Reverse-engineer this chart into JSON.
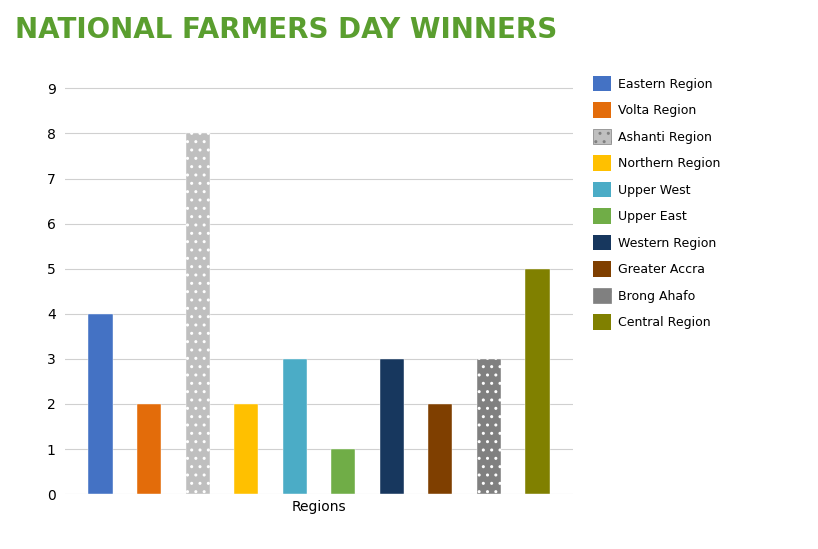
{
  "title": "NATIONAL FARMERS DAY WINNERS",
  "title_color": "#5a9e2f",
  "xlabel": "Regions",
  "ylabel": "",
  "ylim": [
    0,
    9.5
  ],
  "yticks": [
    0,
    1,
    2,
    3,
    4,
    5,
    6,
    7,
    8,
    9
  ],
  "categories": [
    "Eastern Region",
    "Volta Region",
    "Ashanti Region",
    "Northern Region",
    "Upper West",
    "Upper East",
    "Western Region",
    "Greater Accra",
    "Brong Ahafo",
    "Central Region"
  ],
  "values": [
    4,
    2,
    8,
    2,
    3,
    1,
    3,
    2,
    3,
    5
  ],
  "bar_colors": [
    "#4472c4",
    "#e36c0a",
    "#bfbfbf",
    "#ffc000",
    "#4bacc6",
    "#70ad47",
    "#17375e",
    "#7f3f00",
    "#808080",
    "#808000"
  ],
  "bar_hatches": [
    null,
    null,
    "..",
    null,
    null,
    null,
    null,
    null,
    "..",
    null
  ],
  "hatch_colors": [
    null,
    null,
    "#a0a0a0",
    null,
    null,
    null,
    null,
    null,
    "#606060",
    null
  ],
  "background_color": "#ffffff",
  "grid_color": "#d0d0d0",
  "legend_fontsize": 9,
  "title_fontsize": 20,
  "xlabel_fontsize": 10,
  "bar_width": 0.5
}
